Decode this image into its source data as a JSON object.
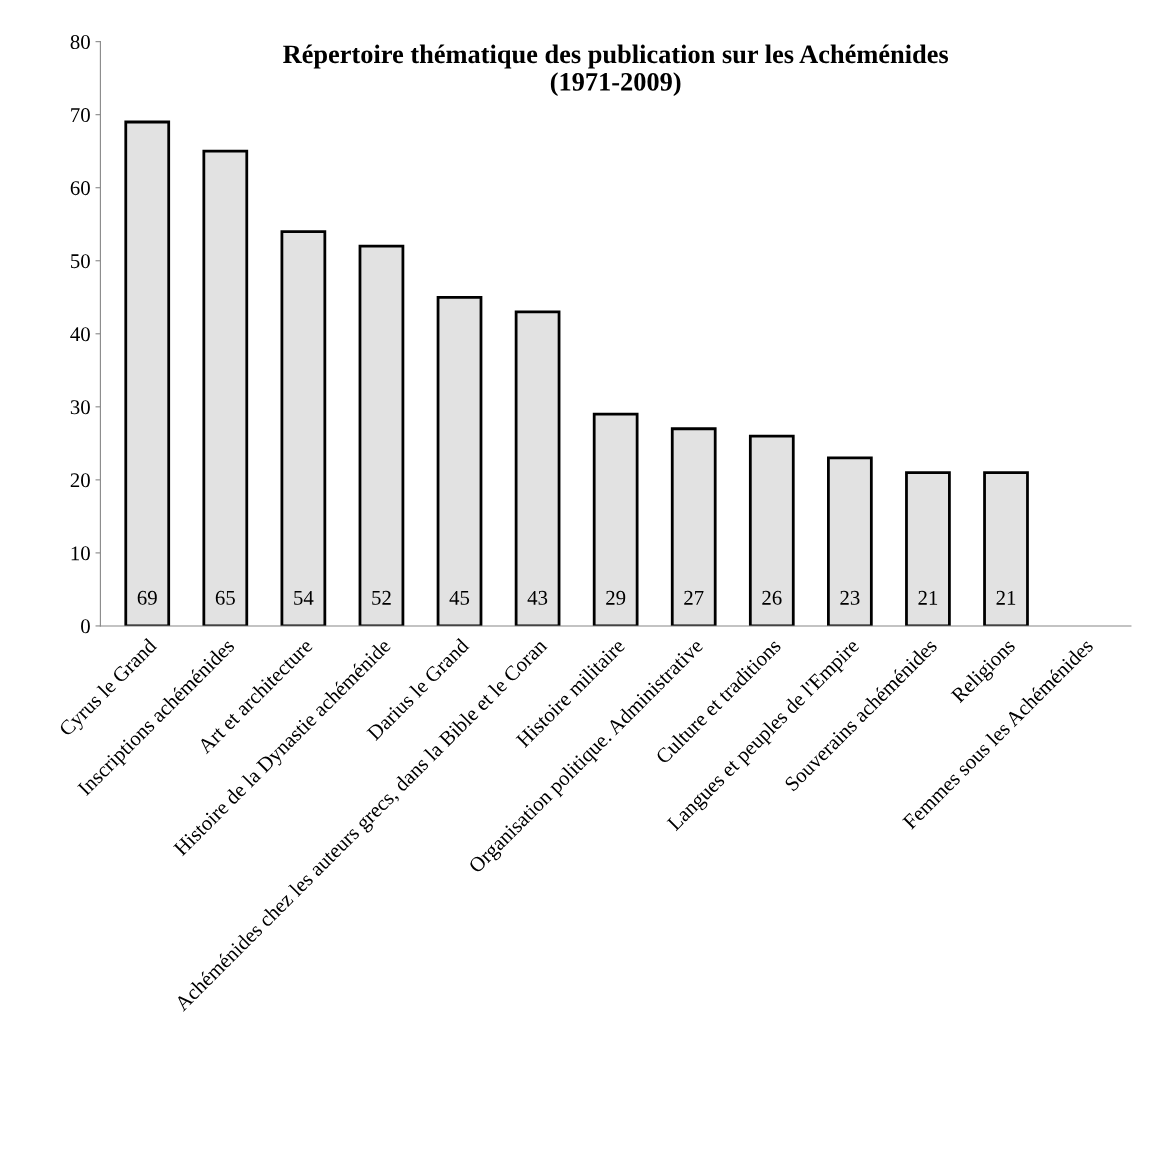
{
  "chart_data": {
    "type": "bar",
    "title": "Répertoire thématique des publication sur les Achéménides\n(1971-2009)",
    "categories": [
      "Cyrus le Grand",
      "Inscriptions achéménides",
      "Art et architecture",
      "Histoire de la Dynastie achéménide",
      "Darius le Grand",
      "Achéménides chez les auteurs grecs, dans la Bible et le Coran",
      "Histoire militaire",
      "Organisation politique. Administrative",
      "Culture et traditions",
      "Langues et peuples de l'Empire",
      "Souverains achéménides",
      "Religions",
      "Femmes sous les Achéménides"
    ],
    "values": [
      69,
      65,
      54,
      52,
      45,
      43,
      29,
      27,
      26,
      23,
      21,
      21,
      null
    ],
    "value_labels": [
      "69",
      "65",
      "54",
      "52",
      "45",
      "43",
      "29",
      "27",
      "26",
      "23",
      "21",
      "21",
      null
    ],
    "color": "#e2e2e2",
    "ylim": [
      0,
      80
    ],
    "yticks": [
      0,
      10,
      20,
      30,
      40,
      50,
      60,
      70,
      80
    ],
    "grid": false,
    "legend": false
  }
}
